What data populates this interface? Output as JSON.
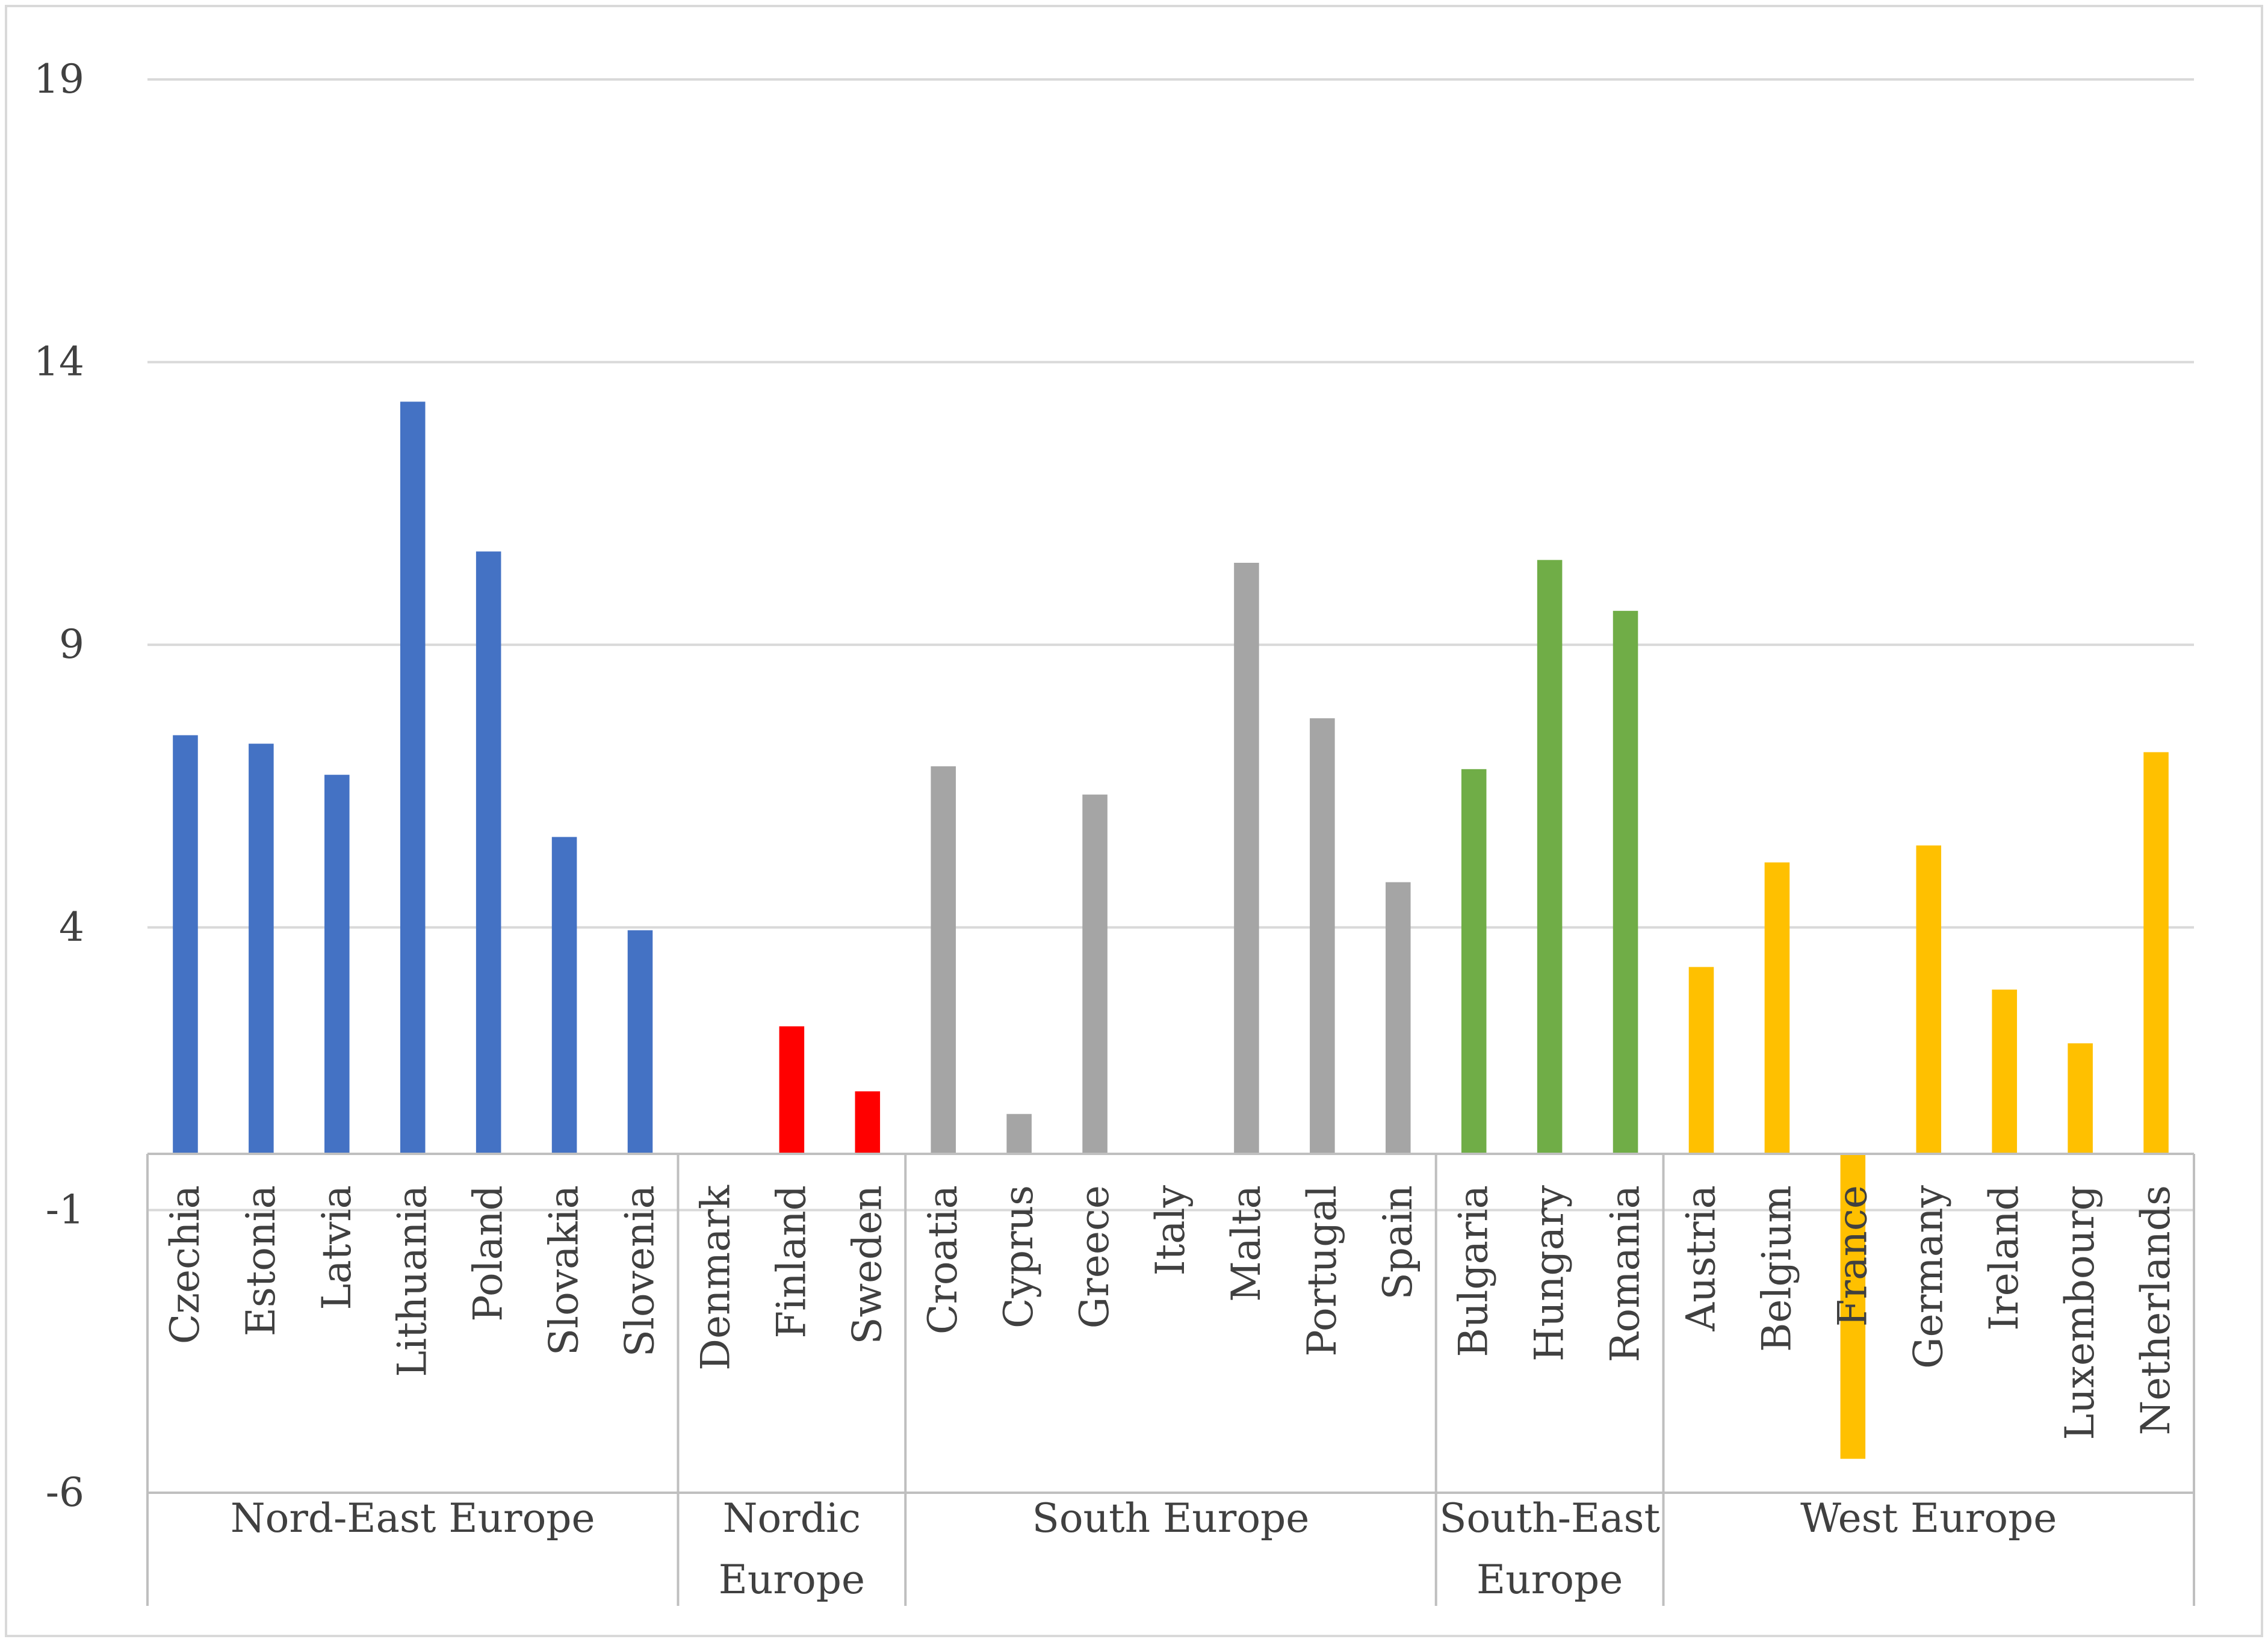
{
  "chart_data": {
    "type": "bar",
    "title": "",
    "xlabel": "",
    "ylabel": "",
    "ylim": [
      -6,
      19
    ],
    "yticks": [
      -6,
      -1,
      4,
      9,
      14,
      19
    ],
    "grid": true,
    "legend": "none",
    "groups": [
      {
        "name": "Nord-East Europe",
        "name_lines": [
          "Nord-East Europe"
        ],
        "color": "#4472C4",
        "categories": [
          "Czechia",
          "Estonia",
          "Latvia",
          "Lithuania",
          "Poland",
          "Slovakia",
          "Slovenia"
        ],
        "values": [
          7.4,
          7.25,
          6.7,
          13.3,
          10.65,
          5.6,
          3.95
        ]
      },
      {
        "name": "Nordic Europe",
        "name_lines": [
          "Nordic",
          "Europe"
        ],
        "color": "#FF0000",
        "categories": [
          "Denmark",
          "Finland",
          "Sweden"
        ],
        "values": [
          0,
          2.25,
          1.1
        ]
      },
      {
        "name": "South Europe",
        "name_lines": [
          "South Europe"
        ],
        "color": "#A5A5A5",
        "categories": [
          "Croatia",
          "Cyprus",
          "Greece",
          "Italy",
          "Malta",
          "Portugal",
          "Spain"
        ],
        "values": [
          6.85,
          0.7,
          6.35,
          0,
          10.45,
          7.7,
          4.8
        ]
      },
      {
        "name": "South-East Europe",
        "name_lines": [
          "South-East",
          "Europe"
        ],
        "color": "#70AD47",
        "categories": [
          "Bulgaria",
          "Hungary",
          "Romania"
        ],
        "values": [
          6.8,
          10.5,
          9.6
        ]
      },
      {
        "name": "West Europe",
        "name_lines": [
          "West Europe"
        ],
        "color": "#FFC000",
        "categories": [
          "Austria",
          "Belgium",
          "France",
          "Germany",
          "Ireland",
          "Luxembourg",
          "Netherlands"
        ],
        "values": [
          3.3,
          5.15,
          -5.4,
          5.45,
          2.9,
          1.95,
          7.1
        ]
      }
    ]
  }
}
